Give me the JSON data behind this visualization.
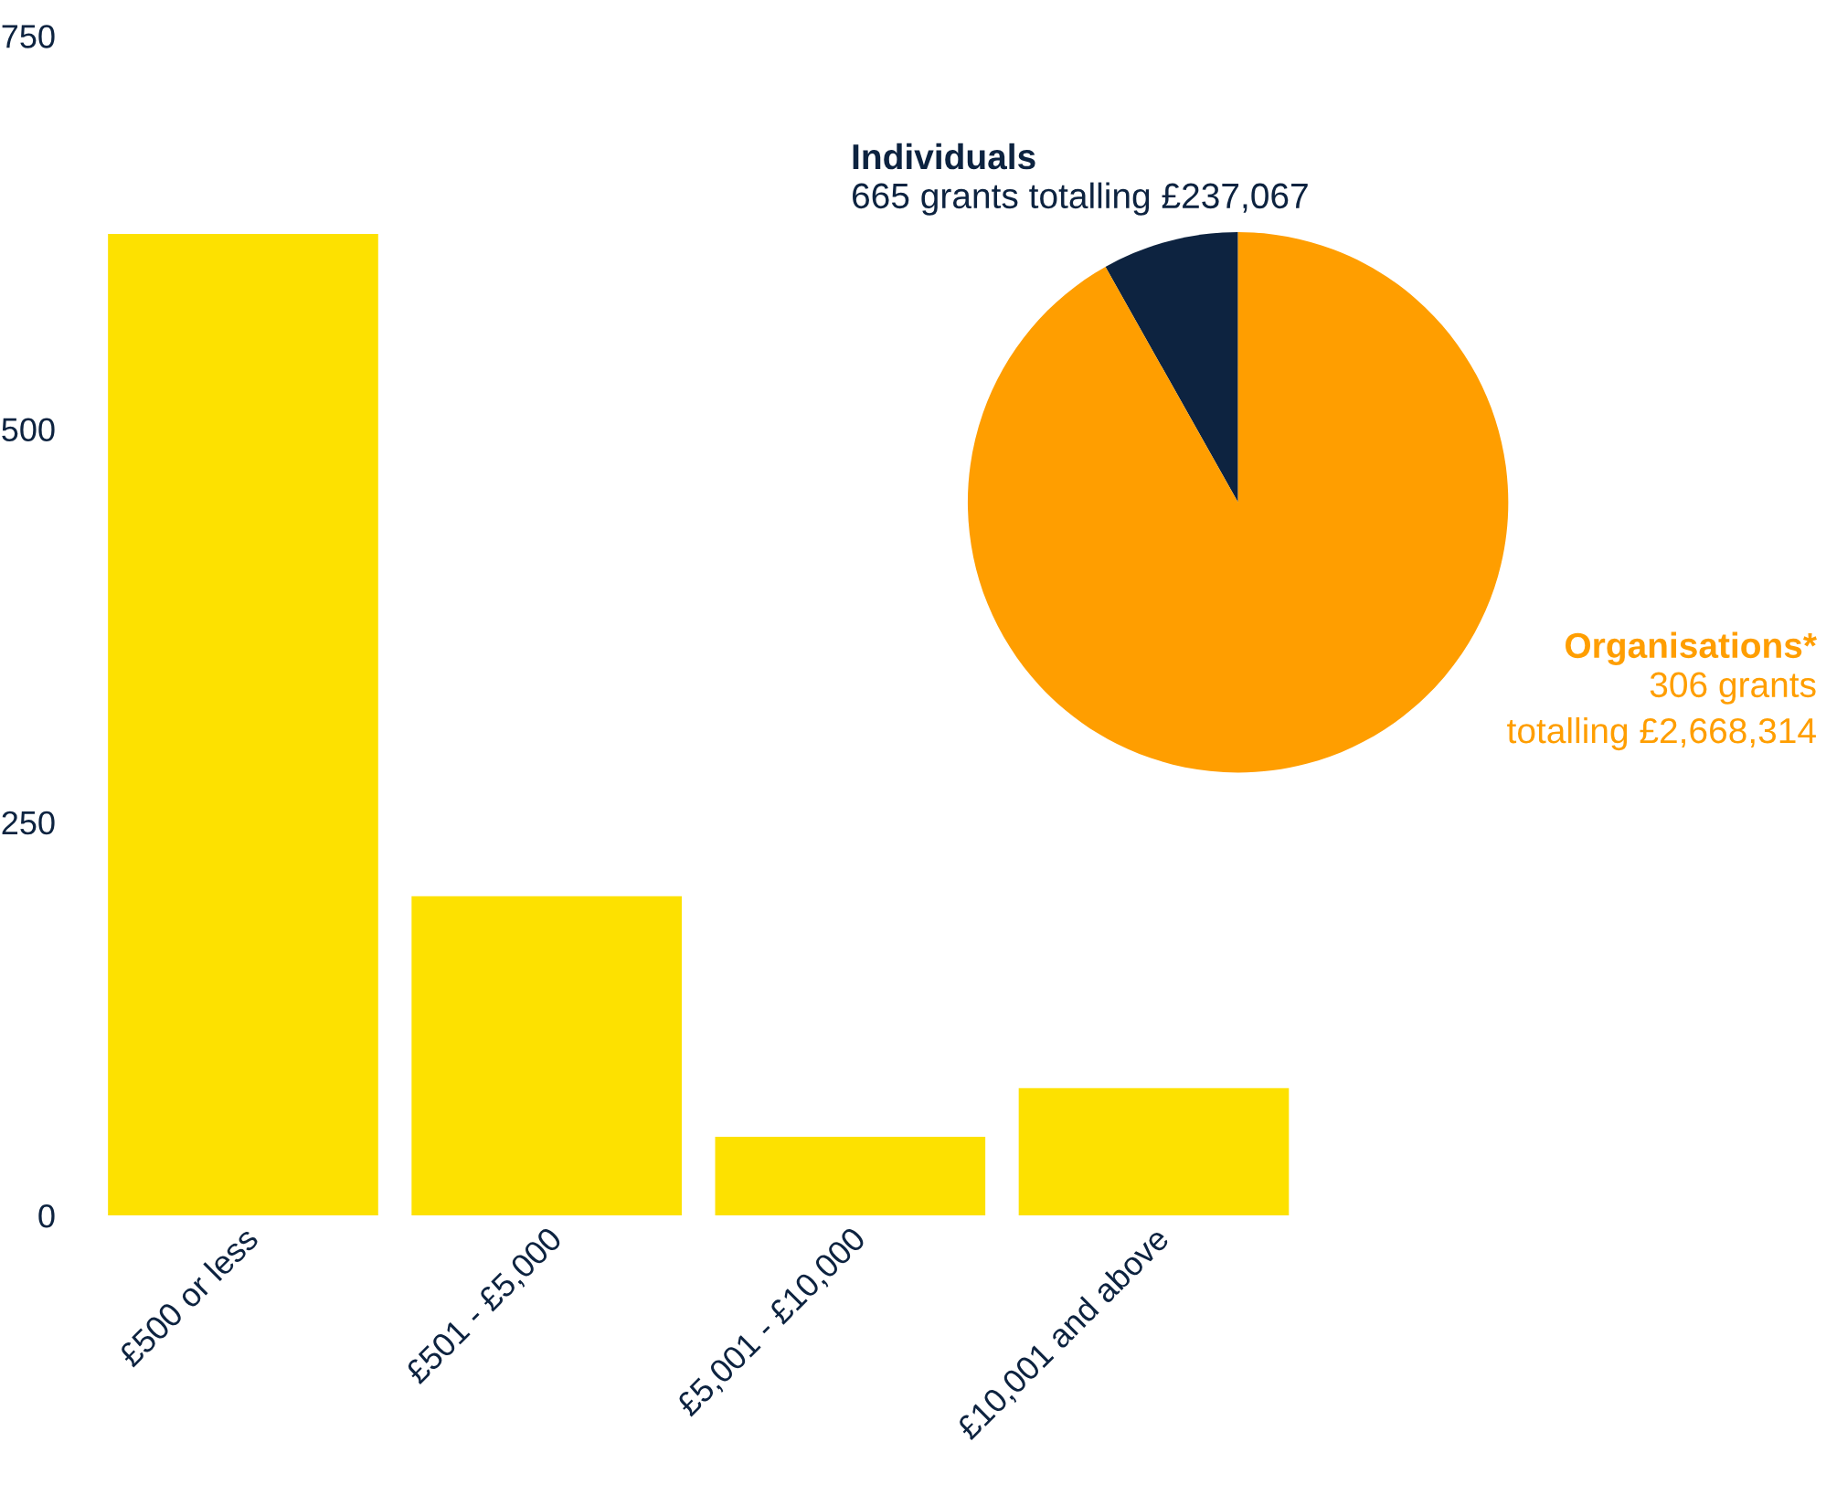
{
  "chart_data": [
    {
      "type": "bar",
      "categories": [
        "£500 or less",
        "£501 - £5,000",
        "£5,001 - £10,000",
        "£10,001 and above"
      ],
      "values": [
        624,
        203,
        50,
        81
      ],
      "color": "#fde100",
      "ylim": [
        0,
        750
      ],
      "yticks": [
        0,
        250,
        500,
        750
      ],
      "grid": false,
      "legend": false
    },
    {
      "type": "pie",
      "categories": [
        "Individuals",
        "Organisations*"
      ],
      "values": [
        8.16,
        91.84
      ],
      "colors": [
        "#0d2340",
        "#ff9e00"
      ],
      "annotations": [
        "665 grants totalling £237,067",
        "306 grants\ntotalling £2,668,314"
      ]
    }
  ]
}
